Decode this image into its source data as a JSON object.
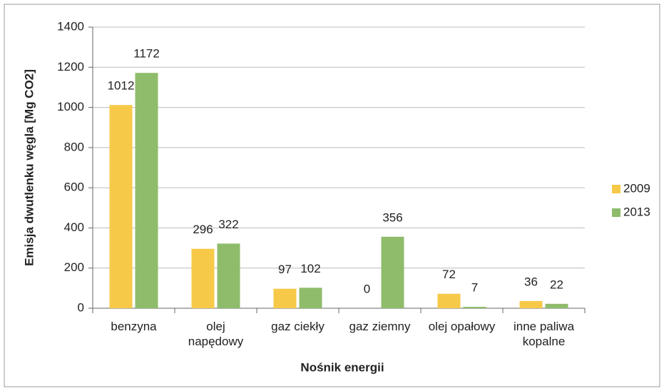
{
  "chart_data": {
    "type": "bar",
    "x_label": "Nośnik energii",
    "y_label": "Emisja dwutlenku węgla [Mg CO2]",
    "categories": [
      "benzyna",
      "olej\nnapędowy",
      "gaz ciekły",
      "gaz ziemny",
      "olej opałowy",
      "inne paliwa\nkopalne"
    ],
    "series": [
      {
        "name": "2009",
        "color": "#f7c948",
        "values": [
          1012,
          296,
          97,
          0,
          72,
          36
        ]
      },
      {
        "name": "2013",
        "color": "#8fbc6b",
        "values": [
          1172,
          322,
          102,
          356,
          7,
          22
        ]
      }
    ],
    "ylim": [
      0,
      1400
    ],
    "yticks": [
      0,
      200,
      400,
      600,
      800,
      1000,
      1200,
      1400
    ],
    "grid": true,
    "legend": "right"
  }
}
